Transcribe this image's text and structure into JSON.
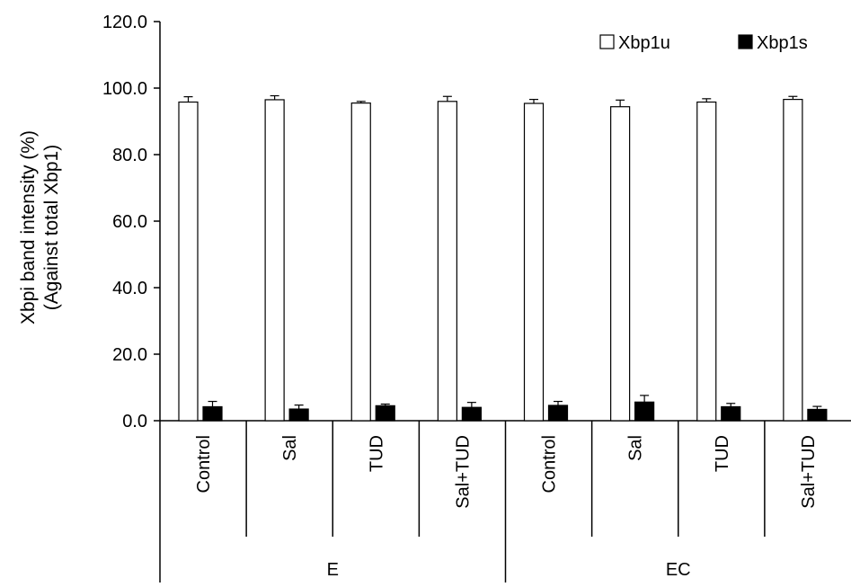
{
  "chart_data": {
    "type": "bar",
    "ylabel_line1": "Xbpi band intensity (%)",
    "ylabel_line2": "(Against total Xbp1)",
    "ylim": [
      0,
      120
    ],
    "yticks": [
      0,
      20,
      40,
      60,
      80,
      100,
      120
    ],
    "ytick_labels": [
      "0.0",
      "20.0",
      "40.0",
      "60.0",
      "80.0",
      "100.0",
      "120.0"
    ],
    "legend_position": "top-right",
    "groups": [
      {
        "label": "E",
        "categories": [
          "Control",
          "Sal",
          "TUD",
          "Sal+TUD"
        ]
      },
      {
        "label": "EC",
        "categories": [
          "Control",
          "Sal",
          "TUD",
          "Sal+TUD"
        ]
      }
    ],
    "categories": [
      "Control",
      "Sal",
      "TUD",
      "Sal+TUD",
      "Control",
      "Sal",
      "TUD",
      "Sal+TUD"
    ],
    "series": [
      {
        "name": "Xbp1u",
        "color": "#ffffff",
        "values": [
          95.8,
          96.5,
          95.5,
          96.0,
          95.4,
          94.4,
          95.8,
          96.6
        ],
        "errors": [
          1.6,
          1.2,
          0.5,
          1.5,
          1.2,
          2.0,
          1.0,
          0.9
        ]
      },
      {
        "name": "Xbp1s",
        "color": "#000000",
        "values": [
          4.2,
          3.5,
          4.5,
          4.0,
          4.6,
          5.6,
          4.2,
          3.4
        ],
        "errors": [
          1.6,
          1.2,
          0.5,
          1.5,
          1.2,
          2.0,
          1.0,
          0.9
        ]
      }
    ]
  }
}
